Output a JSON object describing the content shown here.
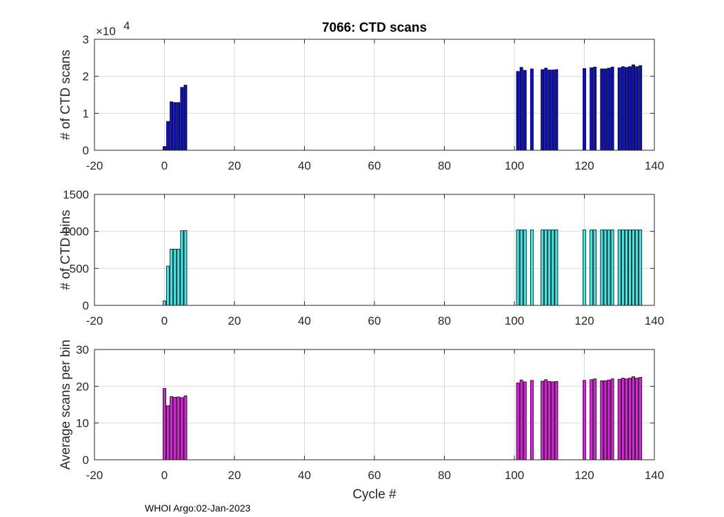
{
  "figure_title": "7066: CTD scans",
  "footer": "WHOI Argo:02-Jan-2023",
  "chart_data": [
    {
      "type": "bar",
      "title": "7066: CTD scans",
      "xlabel": "",
      "ylabel": "# of CTD scans",
      "exponent_label": "×10",
      "exponent_power": "4",
      "xlim": [
        -20,
        140
      ],
      "ylim": [
        0,
        3
      ],
      "xticks": [
        "-20",
        "0",
        "20",
        "40",
        "60",
        "80",
        "100",
        "120",
        "140"
      ],
      "yticks": [
        "0",
        "1",
        "2",
        "3"
      ],
      "bar_color": "#0a0fd0",
      "x": [
        0,
        1,
        2,
        3,
        4,
        5,
        6,
        101,
        102,
        103,
        105,
        108,
        109,
        110,
        111,
        112,
        120,
        122,
        123,
        125,
        126,
        127,
        128,
        130,
        131,
        132,
        133,
        134,
        135,
        136
      ],
      "values": [
        0.1,
        0.78,
        1.31,
        1.29,
        1.29,
        1.7,
        1.76,
        2.13,
        2.24,
        2.16,
        2.2,
        2.18,
        2.22,
        2.17,
        2.17,
        2.18,
        2.21,
        2.23,
        2.25,
        2.2,
        2.2,
        2.22,
        2.25,
        2.23,
        2.26,
        2.24,
        2.26,
        2.31,
        2.26,
        2.29
      ]
    },
    {
      "type": "bar",
      "title": "",
      "xlabel": "",
      "ylabel": "# of CTD bins",
      "xlim": [
        -20,
        140
      ],
      "ylim": [
        0,
        1500
      ],
      "xticks": [
        "-20",
        "0",
        "20",
        "40",
        "60",
        "80",
        "100",
        "120",
        "140"
      ],
      "yticks": [
        "0",
        "500",
        "1000",
        "1500"
      ],
      "bar_color": "#3de8e8",
      "x": [
        0,
        1,
        2,
        3,
        4,
        5,
        6,
        101,
        102,
        103,
        105,
        108,
        109,
        110,
        111,
        112,
        120,
        122,
        123,
        125,
        126,
        127,
        128,
        130,
        131,
        132,
        133,
        134,
        135,
        136
      ],
      "values": [
        60,
        530,
        760,
        760,
        760,
        1010,
        1010,
        1020,
        1020,
        1020,
        1020,
        1020,
        1020,
        1020,
        1020,
        1020,
        1020,
        1020,
        1020,
        1020,
        1020,
        1020,
        1020,
        1020,
        1020,
        1020,
        1020,
        1020,
        1020,
        1020
      ]
    },
    {
      "type": "bar",
      "title": "",
      "xlabel": "Cycle #",
      "ylabel": "Average scans per bin",
      "xlim": [
        -20,
        140
      ],
      "ylim": [
        0,
        30
      ],
      "xticks": [
        "-20",
        "0",
        "20",
        "40",
        "60",
        "80",
        "100",
        "120",
        "140"
      ],
      "yticks": [
        "0",
        "10",
        "20",
        "30"
      ],
      "bar_color": "#e020e0",
      "x": [
        0,
        1,
        2,
        3,
        4,
        5,
        6,
        101,
        102,
        103,
        105,
        108,
        109,
        110,
        111,
        112,
        120,
        122,
        123,
        125,
        126,
        127,
        128,
        130,
        131,
        132,
        133,
        134,
        135,
        136
      ],
      "values": [
        19.4,
        14.7,
        17.2,
        17.0,
        17.1,
        16.9,
        17.4,
        20.9,
        21.7,
        21.2,
        21.6,
        21.4,
        21.8,
        21.3,
        21.2,
        21.3,
        21.6,
        21.8,
        22.0,
        21.5,
        21.5,
        21.7,
        22.0,
        21.9,
        22.2,
        22.0,
        22.2,
        22.6,
        22.2,
        22.4
      ]
    }
  ]
}
